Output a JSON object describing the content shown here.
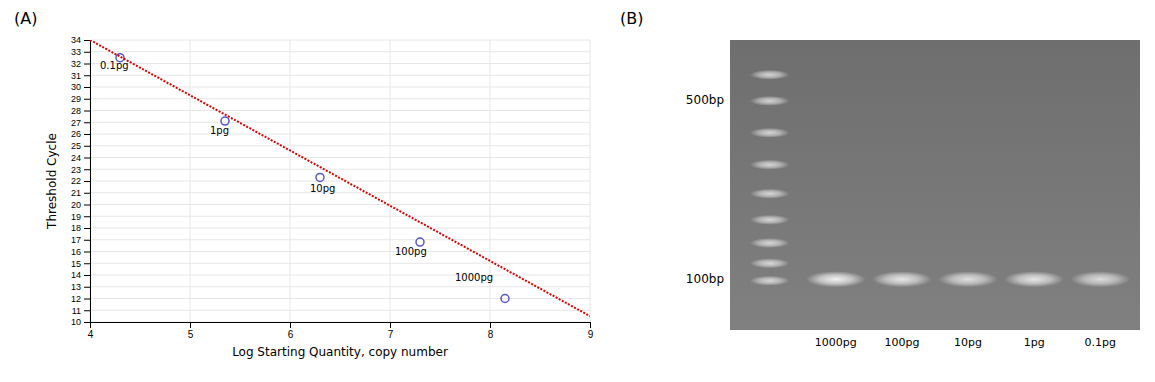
{
  "chart_data": [
    {
      "type": "scatter",
      "title": "(A)",
      "xlabel": "Log Starting Quantity, copy number",
      "ylabel": "Threshold Cycle",
      "x": [
        4.3,
        5.35,
        6.3,
        7.3,
        8.15
      ],
      "series": [
        {
          "type": "scatter",
          "color": "#5555cc",
          "marker": "circle",
          "values": [
            32.5,
            27.1,
            22.3,
            16.8,
            12.0
          ]
        },
        {
          "type": "line",
          "color": "#dd0000",
          "line_style": "dotted",
          "x": [
            4.0,
            9.0
          ],
          "values": [
            34.0,
            10.5
          ]
        }
      ],
      "annotations": [
        {
          "text": "0.1pg",
          "x": 4.1,
          "y": 31.5
        },
        {
          "text": "1pg",
          "x": 5.2,
          "y": 26.0
        },
        {
          "text": "10pg",
          "x": 6.2,
          "y": 21.1
        },
        {
          "text": "100pg",
          "x": 7.05,
          "y": 15.7
        },
        {
          "text": "1000pg",
          "x": 7.65,
          "y": 13.5
        }
      ],
      "xlim": [
        4,
        9
      ],
      "ylim": [
        10,
        34
      ],
      "xticks": [
        4,
        5,
        6,
        7,
        8,
        9
      ],
      "yticks": [
        10,
        11,
        12,
        13,
        14,
        15,
        16,
        17,
        18,
        19,
        20,
        21,
        22,
        23,
        24,
        25,
        26,
        27,
        28,
        29,
        30,
        31,
        32,
        33,
        34
      ],
      "grid": true
    },
    {
      "type": "gel",
      "title": "(B)",
      "categories": [
        "1000pg",
        "100pg",
        "10pg",
        "1pg",
        "0.1pg"
      ],
      "values": [
        0.9,
        0.82,
        0.77,
        0.82,
        0.74
      ],
      "band_y": 0.175,
      "marker_bands": [
        0.88,
        0.79,
        0.68,
        0.57,
        0.47,
        0.38,
        0.3,
        0.23,
        0.17
      ],
      "annotations": [
        {
          "text": "500bp",
          "y": 0.79
        },
        {
          "text": "100bp",
          "y": 0.175
        }
      ],
      "ylim": [
        0,
        1
      ],
      "tick_labels": false
    }
  ]
}
